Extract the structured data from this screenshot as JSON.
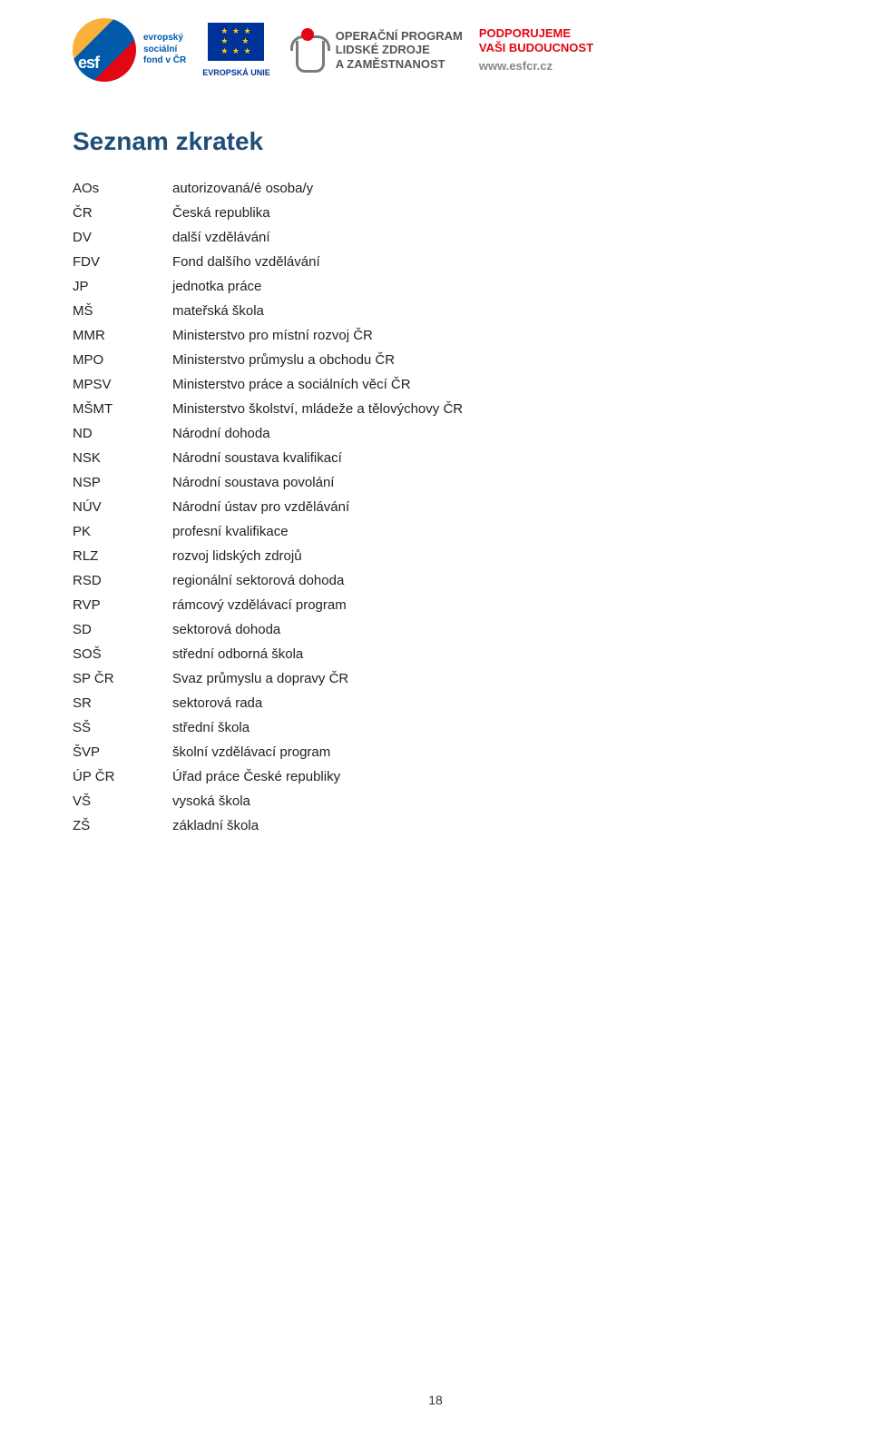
{
  "header": {
    "esf": {
      "abbr": "esf",
      "caption_line1": "evropský",
      "caption_line2": "sociální",
      "caption_line3": "fond v ČR"
    },
    "eu": {
      "caption": "EVROPSKÁ UNIE"
    },
    "oplzz": {
      "line1": "OPERAČNÍ PROGRAM",
      "line2": "LIDSKÉ ZDROJE",
      "line3": "A ZAMĚSTNANOST"
    },
    "support": {
      "line1": "PODPORUJEME",
      "line2": "VAŠI BUDOUCNOST",
      "url": "www.esfcr.cz"
    }
  },
  "title": "Seznam zkratek",
  "abbreviations": [
    {
      "k": "AOs",
      "v": "autorizovaná/é osoba/y"
    },
    {
      "k": "ČR",
      "v": "Česká republika"
    },
    {
      "k": "DV",
      "v": "další vzdělávání"
    },
    {
      "k": "FDV",
      "v": "Fond dalšího vzdělávání"
    },
    {
      "k": "JP",
      "v": "jednotka práce"
    },
    {
      "k": "MŠ",
      "v": "mateřská škola"
    },
    {
      "k": "MMR",
      "v": "Ministerstvo pro místní rozvoj ČR"
    },
    {
      "k": "MPO",
      "v": "Ministerstvo průmyslu a obchodu ČR"
    },
    {
      "k": "MPSV",
      "v": "Ministerstvo práce a sociálních věcí ČR"
    },
    {
      "k": "MŠMT",
      "v": "Ministerstvo školství, mládeže a tělovýchovy ČR"
    },
    {
      "k": "ND",
      "v": "Národní dohoda"
    },
    {
      "k": "NSK",
      "v": "Národní soustava kvalifikací"
    },
    {
      "k": "NSP",
      "v": "Národní soustava povolání"
    },
    {
      "k": "NÚV",
      "v": "Národní ústav pro vzdělávání"
    },
    {
      "k": "PK",
      "v": "profesní kvalifikace"
    },
    {
      "k": "RLZ",
      "v": "rozvoj lidských zdrojů"
    },
    {
      "k": "RSD",
      "v": "regionální sektorová dohoda"
    },
    {
      "k": "RVP",
      "v": "rámcový vzdělávací program"
    },
    {
      "k": "SD",
      "v": "sektorová dohoda"
    },
    {
      "k": "SOŠ",
      "v": "střední odborná škola"
    },
    {
      "k": "SP ČR",
      "v": "Svaz průmyslu a dopravy ČR"
    },
    {
      "k": "SR",
      "v": "sektorová rada"
    },
    {
      "k": "SŠ",
      "v": "střední škola"
    },
    {
      "k": "ŠVP",
      "v": "školní vzdělávací program"
    },
    {
      "k": "ÚP ČR",
      "v": "Úřad práce České republiky"
    },
    {
      "k": "VŠ",
      "v": "vysoká škola"
    },
    {
      "k": "ZŠ",
      "v": "základní škola"
    }
  ],
  "page_number": "18",
  "colors": {
    "title_color": "#1f4e79",
    "text_color": "#222222",
    "red": "#e30613",
    "blue": "#005aa7",
    "eu_blue": "#003399",
    "eu_gold": "#ffcc00",
    "grey": "#7a7a7a"
  }
}
